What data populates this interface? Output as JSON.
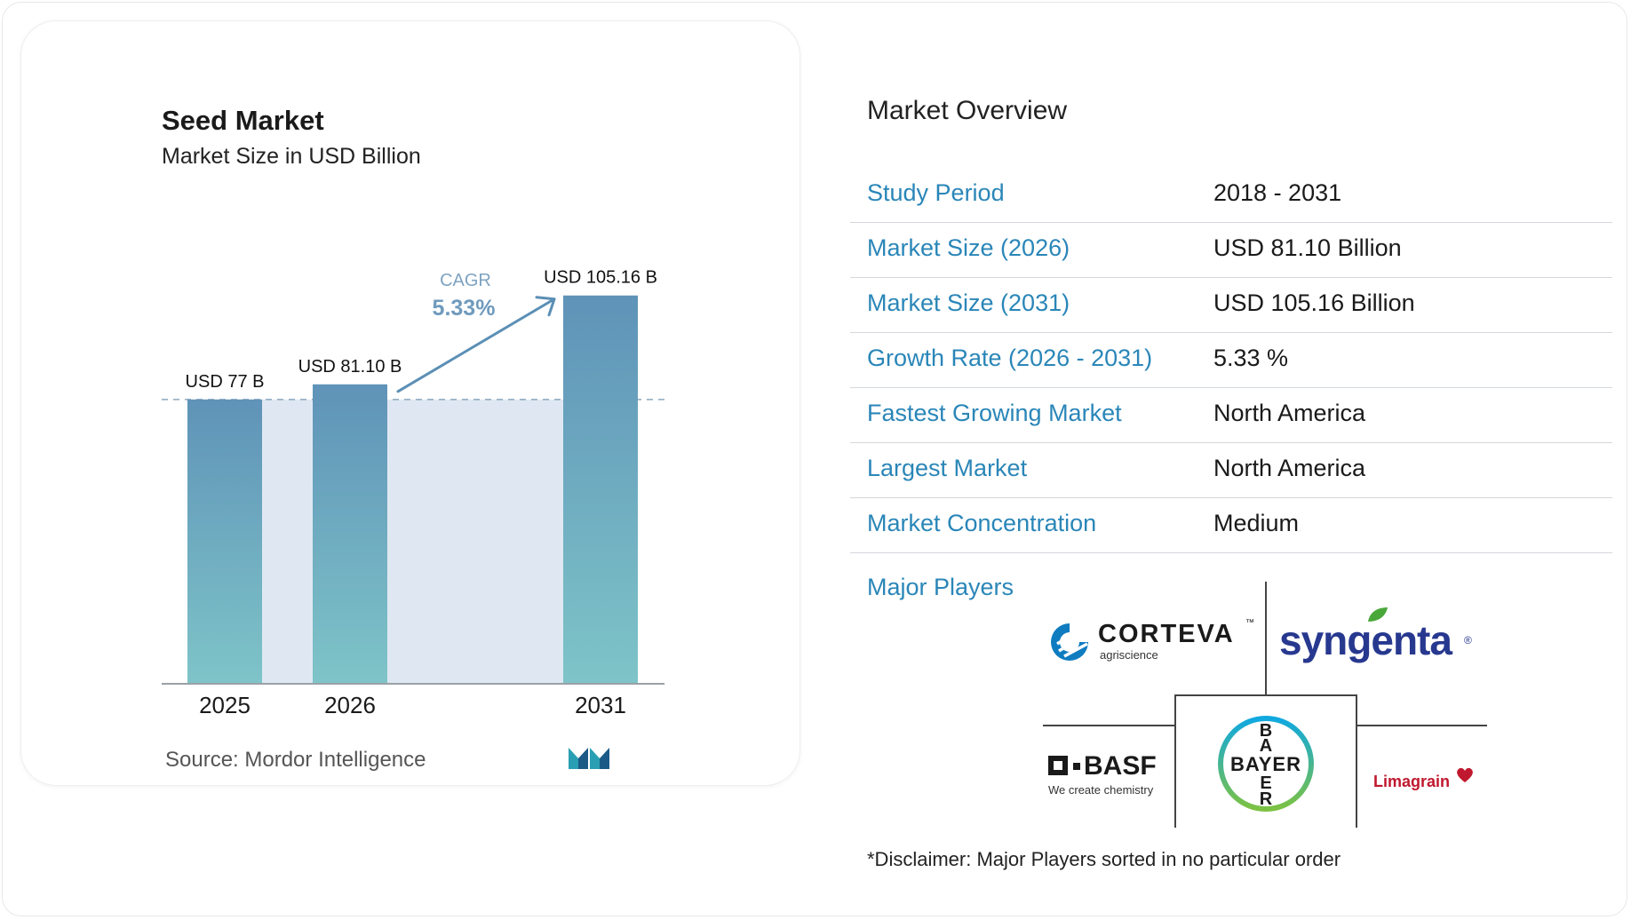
{
  "chart_data": {
    "type": "bar",
    "title": "Seed Market",
    "subtitle": "Market Size in USD Billion",
    "categories": [
      "2025",
      "2026",
      "2031"
    ],
    "values": [
      77,
      81.1,
      105.16
    ],
    "data_labels": [
      "USD 77 B",
      "USD 81.10 B",
      "USD 105.16 B"
    ],
    "cagr_label": "CAGR",
    "cagr_value": "5.33%",
    "colors": {
      "bar_top": "#5f93b8",
      "bar_bottom": "#7ec4c8",
      "band": "#dfe8f2",
      "arrow": "#5b8fb5"
    },
    "grid": false,
    "legend": "none"
  },
  "source": "Source: Mordor Intelligence",
  "overview": {
    "title": "Market Overview",
    "rows": [
      {
        "label": "Study Period",
        "value": "2018 - 2031"
      },
      {
        "label": "Market Size (2026)",
        "value": "USD 81.10 Billion"
      },
      {
        "label": "Market Size (2031)",
        "value": "USD 105.16 Billion"
      },
      {
        "label": "Growth Rate (2026 - 2031)",
        "value": "5.33 %"
      },
      {
        "label": "Fastest Growing Market",
        "value": "North America"
      },
      {
        "label": "Largest Market",
        "value": "North America"
      },
      {
        "label": "Market Concentration",
        "value": "Medium"
      }
    ],
    "players_label": "Major Players",
    "players": {
      "corteva": {
        "name": "CORTEVA",
        "tag": "agriscience",
        "tm": "™"
      },
      "syngenta": {
        "name": "syngenta",
        "reg": "®"
      },
      "basf": {
        "name": "BASF",
        "tag": "We create chemistry"
      },
      "bayer": {
        "name": "BAYER"
      },
      "limagrain": {
        "name": "Limagrain"
      }
    },
    "disclaimer": "*Disclaimer: Major Players sorted in no particular order"
  }
}
